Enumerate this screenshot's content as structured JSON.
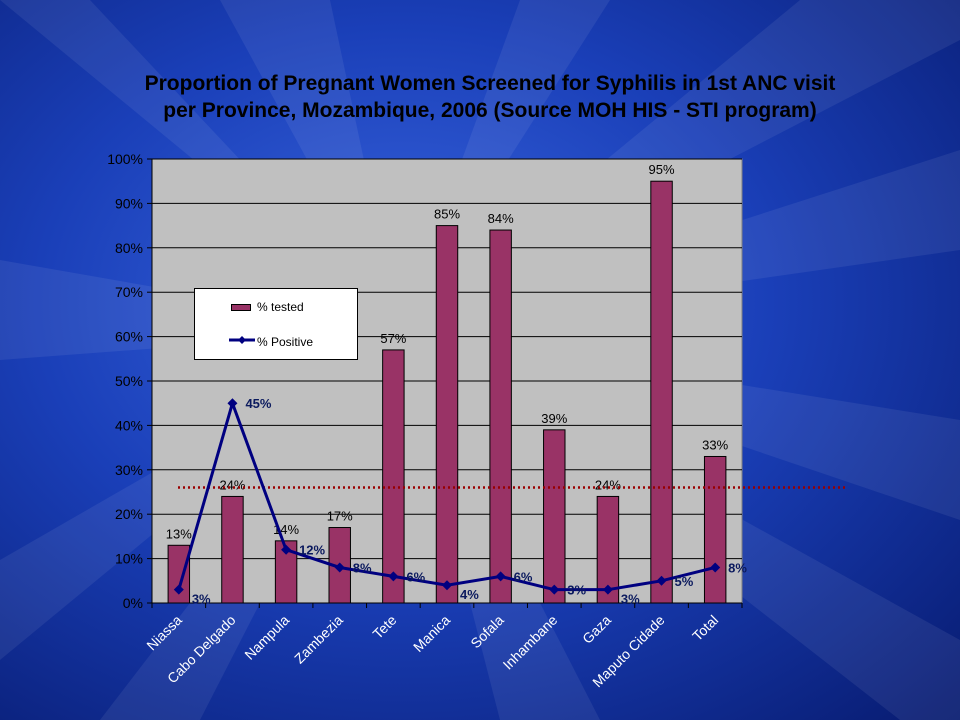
{
  "title": "Proportion of Pregnant Women Screened for Syphilis in 1st ANC visit per Province, Mozambique, 2006 (Source MOH HIS - STI program)",
  "colors": {
    "bar": "#993366",
    "line": "#000080",
    "reference_line": "#990000",
    "plot_area": "#c0c0c0"
  },
  "chart_data": {
    "type": "bar",
    "title": "Proportion of Pregnant Women Screened for Syphilis in 1st ANC visit per Province, Mozambique, 2006 (Source MOH HIS - STI program)",
    "categories": [
      "Niassa",
      "Cabo Delgado",
      "Nampula",
      "Zambezia",
      "Tete",
      "Manica",
      "Sofala",
      "Inhambane",
      "Gaza",
      "Maputo Cidade",
      "Total"
    ],
    "series": [
      {
        "name": "% tested",
        "type": "bar",
        "values": [
          13,
          24,
          14,
          17,
          57,
          85,
          84,
          39,
          24,
          95,
          33
        ],
        "labels": [
          "13%",
          "24%",
          "14%",
          "17%",
          "57%",
          "85%",
          "84%",
          "39%",
          "24%",
          "95%",
          "33%"
        ]
      },
      {
        "name": "% Positive",
        "type": "line",
        "values": [
          3,
          45,
          12,
          8,
          6,
          4,
          6,
          3,
          3,
          5,
          8
        ],
        "labels": [
          "3%",
          "45%",
          "12%",
          "8%",
          "6%",
          "4%",
          "6%",
          "3%",
          "3%",
          "5%",
          "8%"
        ]
      }
    ],
    "reference_line": 26,
    "ylim": [
      0,
      100
    ],
    "yticks": [
      "0%",
      "10%",
      "20%",
      "30%",
      "40%",
      "50%",
      "60%",
      "70%",
      "80%",
      "90%",
      "100%"
    ],
    "grid": true,
    "legend_position": "left"
  }
}
